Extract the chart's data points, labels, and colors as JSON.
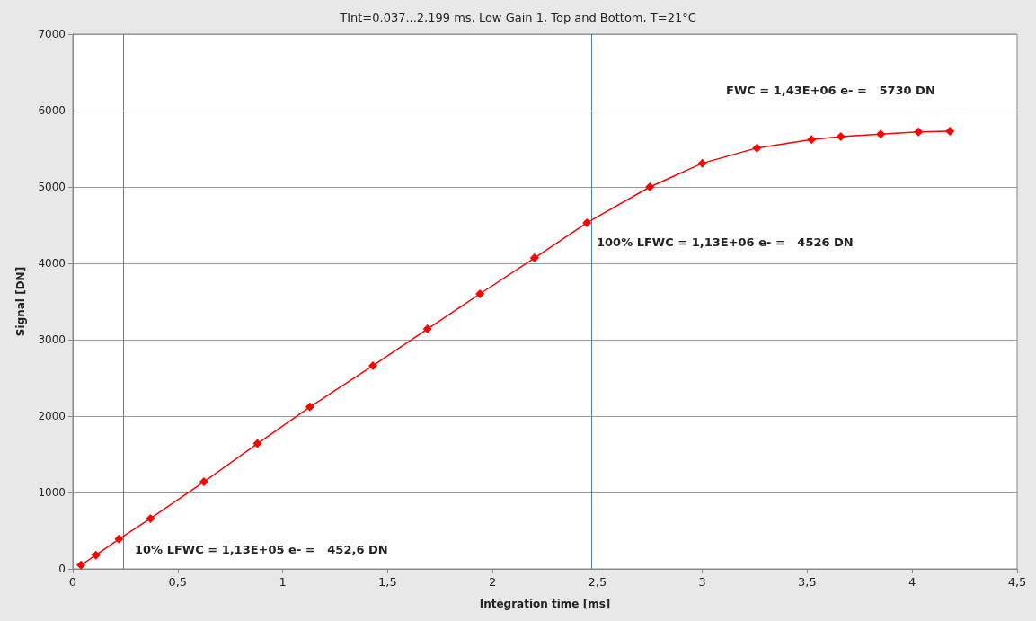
{
  "chart_data": {
    "type": "line",
    "title": "TInt=0.037...2,199 ms, Low Gain 1, Top and Bottom, T=21°C",
    "xlabel": "Integration time [ms]",
    "ylabel": "Signal [DN]",
    "x": [
      0.039,
      0.11,
      0.22,
      0.37,
      0.625,
      0.88,
      1.13,
      1.43,
      1.69,
      1.94,
      2.2,
      2.45,
      2.75,
      3.0,
      3.26,
      3.52,
      3.66,
      3.85,
      4.03,
      4.18
    ],
    "series": [
      {
        "color": "#ff0000",
        "values": [
          50,
          180,
          390,
          660,
          1140,
          1640,
          2120,
          2660,
          3140,
          3600,
          4070,
          4530,
          5000,
          5310,
          5510,
          5620,
          5660,
          5690,
          5720,
          5730
        ]
      }
    ],
    "xlim": [
      0,
      4.5
    ],
    "xticks": [
      0,
      {
        "value": 0.5,
        "label": "0,5"
      },
      1,
      {
        "value": 1.5,
        "label": "1,5"
      },
      2,
      {
        "value": 2.5,
        "label": "2,5"
      },
      3,
      {
        "value": 3.5,
        "label": "3,5"
      },
      4,
      {
        "value": 4.5,
        "label": "4,5"
      }
    ],
    "ylim": [
      0,
      7000
    ],
    "yticks": [
      0,
      1000,
      2000,
      3000,
      4000,
      5000,
      6000,
      7000
    ],
    "ref_lines": [
      {
        "axis": "x",
        "value": 0.244,
        "color": "#4f81bd"
      },
      {
        "axis": "x",
        "value": 2.47,
        "color": "#4f81bd"
      }
    ],
    "annotations": [
      "10% LFWC = 1,13E+05 e- =   452,6 DN",
      "100% LFWC = 1,13E+06 e- =   4526 DN",
      "FWC = 1,43E+06 e- =   5730 DN"
    ],
    "grid": "y",
    "marker": "diamond",
    "line_style": "solid"
  }
}
